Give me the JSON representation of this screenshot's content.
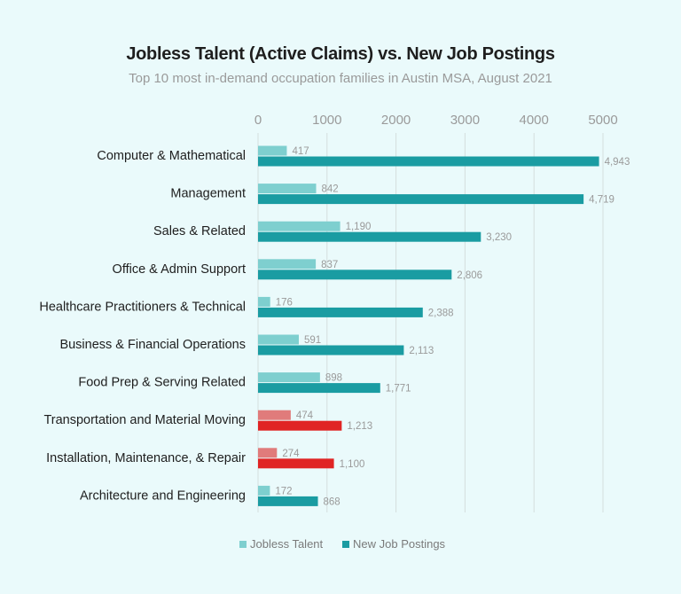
{
  "chart_data": {
    "type": "bar",
    "orientation": "horizontal",
    "title": "Jobless Talent (Active Claims) vs. New Job Postings",
    "subtitle": "Top 10 most in-demand occupation families in Austin MSA, August 2021",
    "categories": [
      "Computer & Mathematical",
      "Management",
      "Sales & Related",
      "Office & Admin Support",
      "Healthcare Practitioners & Technical",
      "Business & Financial Operations",
      "Food Prep & Serving Related",
      "Transportation and Material Moving",
      "Installation, Maintenance, & Repair",
      "Architecture and Engineering"
    ],
    "series": [
      {
        "name": "Jobless Talent",
        "color": "#7ecfcf",
        "highlight_color": "#e07b7b",
        "values": [
          417,
          842,
          1190,
          837,
          176,
          591,
          898,
          474,
          274,
          172
        ],
        "value_labels": [
          "417",
          "842",
          "1,190",
          "837",
          "176",
          "591",
          "898",
          "474",
          "274",
          "172"
        ]
      },
      {
        "name": "New Job Postings",
        "color": "#1a9ca2",
        "highlight_color": "#e02424",
        "values": [
          4943,
          4719,
          3230,
          2806,
          2388,
          2113,
          1771,
          1213,
          1100,
          868
        ],
        "value_labels": [
          "4,943",
          "4,719",
          "3,230",
          "2,806",
          "2,388",
          "2,113",
          "1,771",
          "1,213",
          "1,100",
          "868"
        ]
      }
    ],
    "highlighted_categories": [
      7,
      8
    ],
    "xlim": [
      0,
      5000
    ],
    "x_ticks": [
      0,
      1000,
      2000,
      3000,
      4000,
      5000
    ],
    "x_tick_labels": [
      "0",
      "1000",
      "2000",
      "3000",
      "4000",
      "5000"
    ],
    "x_axis_position": "top",
    "grid": true,
    "legend_position": "bottom"
  }
}
